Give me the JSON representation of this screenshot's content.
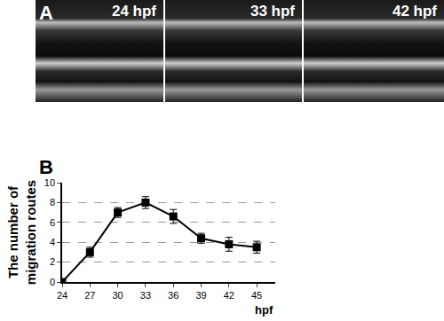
{
  "panel_a": {
    "label": "A",
    "frames": [
      "24 hpf",
      "33 hpf",
      "42 hpf"
    ]
  },
  "chart_data": {
    "type": "line",
    "label": "B",
    "ylabel": [
      "The number of",
      "migration routes"
    ],
    "xlabel": "hpf",
    "x": [
      24,
      27,
      30,
      33,
      36,
      39,
      42,
      45
    ],
    "values": [
      0,
      3.0,
      7.0,
      8.0,
      6.6,
      4.4,
      3.8,
      3.5
    ],
    "errors": [
      0,
      0.5,
      0.5,
      0.6,
      0.7,
      0.5,
      0.7,
      0.6
    ],
    "color": "#000000",
    "marker": "square",
    "xlim": [
      24,
      47
    ],
    "xticks": [
      24,
      27,
      30,
      33,
      36,
      39,
      42,
      45
    ],
    "ylim": [
      0,
      10
    ],
    "yticks": [
      0,
      2,
      4,
      6,
      8,
      10
    ],
    "grid": true
  }
}
